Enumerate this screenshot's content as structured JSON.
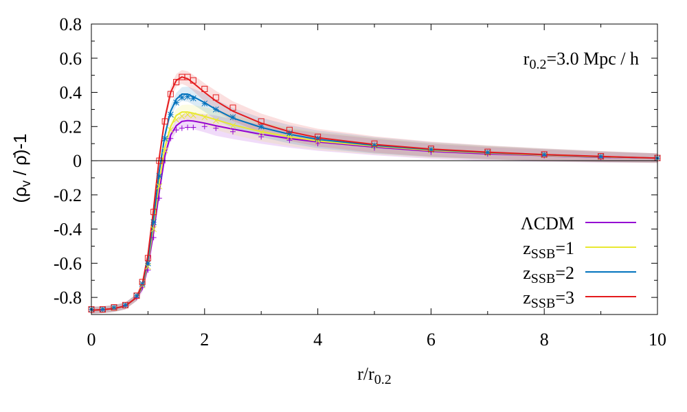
{
  "chart_data": {
    "type": "line",
    "title": "",
    "xlabel": {
      "main": "r/r",
      "sub": "0.2"
    },
    "ylabel": {
      "pre": "(ρ",
      "sub": "v",
      "post": " / ρ̄)-1"
    },
    "xlim": [
      0,
      10
    ],
    "ylim": [
      -0.9,
      0.8
    ],
    "xticks": [
      0,
      2,
      4,
      6,
      8,
      10
    ],
    "yticks": [
      -0.8,
      -0.6,
      -0.4,
      -0.2,
      0,
      0.2,
      0.4,
      0.6,
      0.8
    ],
    "xtick_labels": [
      "0",
      "2",
      "4",
      "6",
      "8",
      "10"
    ],
    "ytick_labels": [
      "-0.8",
      "-0.6",
      "-0.4",
      "-0.2",
      "0",
      "0.2",
      "0.4",
      "0.6",
      "0.8"
    ],
    "zero_line": true,
    "annotation": {
      "main": "r",
      "sub": "0.2",
      "post": "=3.0 Mpc / h"
    },
    "legend_position": "bottom-right",
    "x": [
      0,
      0.2,
      0.4,
      0.6,
      0.8,
      0.9,
      1.0,
      1.1,
      1.2,
      1.3,
      1.4,
      1.5,
      1.6,
      1.7,
      1.8,
      2.0,
      2.2,
      2.5,
      3.0,
      3.5,
      4.0,
      5.0,
      6.0,
      7.0,
      8.0,
      9.0,
      10.0
    ],
    "series": [
      {
        "name": "ΛCDM",
        "name_main": "ΛCDM",
        "name_sub": "",
        "name_post": "",
        "color": "#9400d3",
        "values": [
          -0.875,
          -0.872,
          -0.865,
          -0.85,
          -0.8,
          -0.75,
          -0.62,
          -0.42,
          -0.18,
          0.03,
          0.15,
          0.205,
          0.23,
          0.235,
          0.232,
          0.22,
          0.205,
          0.185,
          0.155,
          0.13,
          0.11,
          0.08,
          0.055,
          0.04,
          0.03,
          0.02,
          0.015
        ],
        "markers": [
          -0.87,
          -0.872,
          -0.86,
          -0.848,
          -0.8,
          -0.74,
          -0.64,
          -0.45,
          -0.22,
          0.0,
          0.13,
          0.18,
          0.19,
          0.195,
          0.195,
          0.2,
          0.19,
          0.17,
          0.14,
          0.12,
          0.1,
          0.075,
          0.05,
          0.04,
          0.03,
          0.02,
          0.015
        ]
      },
      {
        "name": "zSSB=1",
        "name_main": "z",
        "name_sub": "SSB",
        "name_post": "=1",
        "color": "#e8e830",
        "values": [
          -0.875,
          -0.872,
          -0.865,
          -0.85,
          -0.8,
          -0.74,
          -0.6,
          -0.38,
          -0.12,
          0.08,
          0.2,
          0.265,
          0.285,
          0.285,
          0.278,
          0.26,
          0.24,
          0.21,
          0.17,
          0.14,
          0.115,
          0.085,
          0.06,
          0.045,
          0.032,
          0.022,
          0.015
        ],
        "markers": [
          -0.87,
          -0.87,
          -0.862,
          -0.846,
          -0.79,
          -0.73,
          -0.62,
          -0.4,
          -0.15,
          0.06,
          0.18,
          0.24,
          0.26,
          0.27,
          0.265,
          0.255,
          0.235,
          0.205,
          0.165,
          0.14,
          0.115,
          0.085,
          0.06,
          0.045,
          0.032,
          0.022,
          0.015
        ]
      },
      {
        "name": "zSSB=2",
        "name_main": "z",
        "name_sub": "SSB",
        "name_post": "=2",
        "color": "#0072bd",
        "values": [
          -0.875,
          -0.872,
          -0.865,
          -0.85,
          -0.8,
          -0.73,
          -0.58,
          -0.34,
          -0.06,
          0.15,
          0.29,
          0.36,
          0.39,
          0.39,
          0.375,
          0.34,
          0.3,
          0.25,
          0.195,
          0.155,
          0.125,
          0.09,
          0.065,
          0.048,
          0.035,
          0.024,
          0.015
        ],
        "markers": [
          -0.87,
          -0.87,
          -0.86,
          -0.845,
          -0.79,
          -0.72,
          -0.6,
          -0.36,
          -0.09,
          0.13,
          0.27,
          0.34,
          0.37,
          0.375,
          0.365,
          0.335,
          0.3,
          0.255,
          0.2,
          0.16,
          0.13,
          0.09,
          0.065,
          0.048,
          0.035,
          0.024,
          0.015
        ]
      },
      {
        "name": "zSSB=3",
        "name_main": "z",
        "name_sub": "SSB",
        "name_post": "=3",
        "color": "#e41a1c",
        "values": [
          -0.875,
          -0.872,
          -0.865,
          -0.85,
          -0.8,
          -0.72,
          -0.55,
          -0.28,
          0.02,
          0.25,
          0.4,
          0.47,
          0.49,
          0.48,
          0.455,
          0.4,
          0.35,
          0.29,
          0.22,
          0.17,
          0.135,
          0.095,
          0.068,
          0.05,
          0.036,
          0.025,
          0.015
        ],
        "markers": [
          -0.87,
          -0.87,
          -0.858,
          -0.845,
          -0.79,
          -0.71,
          -0.57,
          -0.3,
          0.0,
          0.23,
          0.39,
          0.46,
          0.49,
          0.49,
          0.47,
          0.42,
          0.37,
          0.31,
          0.23,
          0.18,
          0.14,
          0.1,
          0.07,
          0.052,
          0.037,
          0.026,
          0.016
        ]
      }
    ]
  }
}
